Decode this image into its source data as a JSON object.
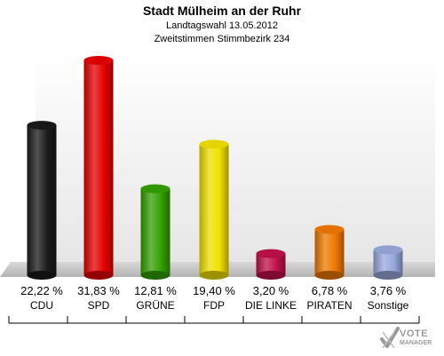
{
  "header": {
    "title": "Stadt Mülheim an der Ruhr",
    "subtitle1": "Landtagswahl 13.05.2012",
    "subtitle2": "Zweitstimmen Stimmbezirk 234"
  },
  "logo": {
    "line1": "VOTE",
    "line2": "MANAGER"
  },
  "chart_data": {
    "type": "bar",
    "title": "Stadt Mülheim an der Ruhr",
    "categories": [
      "CDU",
      "SPD",
      "GRÜNE",
      "FDP",
      "DIE LINKE",
      "PIRATEN",
      "Sonstige"
    ],
    "values": [
      22.22,
      31.83,
      12.81,
      19.4,
      3.2,
      6.78,
      3.76
    ],
    "value_labels": [
      "22,22 %",
      "31,83 %",
      "12,81 %",
      "19,40 %",
      "3,20 %",
      "6,78 %",
      "3,76 %"
    ],
    "colors": [
      "#1a1a1a",
      "#e60000",
      "#33a000",
      "#f0e000",
      "#c0104a",
      "#f07800",
      "#98a8dc"
    ],
    "ylim": [
      0,
      35
    ],
    "grid": false,
    "legend": "none"
  }
}
